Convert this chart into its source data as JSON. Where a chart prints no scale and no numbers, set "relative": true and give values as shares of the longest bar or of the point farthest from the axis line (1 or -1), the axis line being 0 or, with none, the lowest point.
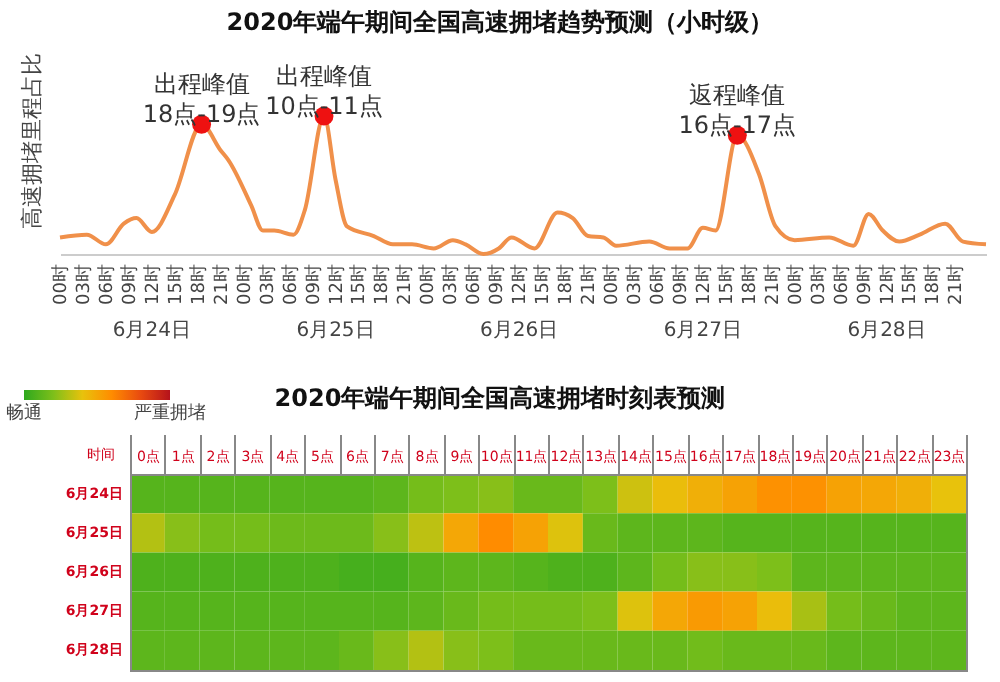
{
  "chart_data": [
    {
      "type": "line",
      "title": "2020年端午期间全国高速拥堵趋势预测（小时级）",
      "ylabel": "高速拥堵里程占比",
      "relative": true,
      "xlim": [
        "2020-06-24T00:00",
        "2020-06-29T01:00"
      ],
      "xticks": [
        {
          "value": "2020-06-24T00:00",
          "label": "00时"
        },
        {
          "value": "2020-06-24T03:00",
          "label": "03时"
        },
        {
          "value": "2020-06-24T06:00",
          "label": "06时"
        },
        {
          "value": "2020-06-24T09:00",
          "label": "09时"
        },
        {
          "value": "2020-06-24T12:00",
          "label": "12时"
        },
        {
          "value": "2020-06-24T15:00",
          "label": "15时"
        },
        {
          "value": "2020-06-24T18:00",
          "label": "18时"
        },
        {
          "value": "2020-06-24T21:00",
          "label": "21时"
        },
        {
          "value": "2020-06-25T00:00",
          "label": "00时"
        },
        {
          "value": "2020-06-25T03:00",
          "label": "03时"
        },
        {
          "value": "2020-06-25T06:00",
          "label": "06时"
        },
        {
          "value": "2020-06-25T09:00",
          "label": "09时"
        },
        {
          "value": "2020-06-25T12:00",
          "label": "12时"
        },
        {
          "value": "2020-06-25T15:00",
          "label": "15时"
        },
        {
          "value": "2020-06-25T18:00",
          "label": "18时"
        },
        {
          "value": "2020-06-25T21:00",
          "label": "21时"
        },
        {
          "value": "2020-06-26T00:00",
          "label": "00时"
        },
        {
          "value": "2020-06-26T03:00",
          "label": "03时"
        },
        {
          "value": "2020-06-26T06:00",
          "label": "06时"
        },
        {
          "value": "2020-06-26T09:00",
          "label": "09时"
        },
        {
          "value": "2020-06-26T12:00",
          "label": "12时"
        },
        {
          "value": "2020-06-26T15:00",
          "label": "15时"
        },
        {
          "value": "2020-06-26T18:00",
          "label": "18时"
        },
        {
          "value": "2020-06-26T21:00",
          "label": "21时"
        },
        {
          "value": "2020-06-27T00:00",
          "label": "00时"
        },
        {
          "value": "2020-06-27T03:00",
          "label": "03时"
        },
        {
          "value": "2020-06-27T06:00",
          "label": "06时"
        },
        {
          "value": "2020-06-27T09:00",
          "label": "09时"
        },
        {
          "value": "2020-06-27T12:00",
          "label": "12时"
        },
        {
          "value": "2020-06-27T15:00",
          "label": "15时"
        },
        {
          "value": "2020-06-27T18:00",
          "label": "18时"
        },
        {
          "value": "2020-06-27T21:00",
          "label": "21时"
        },
        {
          "value": "2020-06-28T00:00",
          "label": "00时"
        },
        {
          "value": "2020-06-28T03:00",
          "label": "03时"
        },
        {
          "value": "2020-06-28T06:00",
          "label": "06时"
        },
        {
          "value": "2020-06-28T09:00",
          "label": "09时"
        },
        {
          "value": "2020-06-28T12:00",
          "label": "12时"
        },
        {
          "value": "2020-06-28T15:00",
          "label": "15时"
        },
        {
          "value": "2020-06-28T18:00",
          "label": "18时"
        },
        {
          "value": "2020-06-28T21:00",
          "label": "21时"
        }
      ],
      "series": [
        {
          "type": "line",
          "color": "#f0904a",
          "x": [
            "2020-06-24T00:00",
            "2020-06-24T03:30",
            "2020-06-24T06:00",
            "2020-06-24T08:20",
            "2020-06-24T10:00",
            "2020-06-24T12:00",
            "2020-06-24T15:00",
            "2020-06-24T18:30",
            "2020-06-24T21:00",
            "2020-06-24T22:00",
            "2020-06-25T01:00",
            "2020-06-25T02:30",
            "2020-06-25T04:00",
            "2020-06-25T06:30",
            "2020-06-25T08:00",
            "2020-06-25T10:30",
            "2020-06-25T12:00",
            "2020-06-25T13:30",
            "2020-06-25T17:00",
            "2020-06-25T19:30",
            "2020-06-25T22:00",
            "2020-06-26T00:50",
            "2020-06-26T03:20",
            "2020-06-26T05:00",
            "2020-06-26T07:20",
            "2020-06-26T09:20",
            "2020-06-26T11:00",
            "2020-06-26T14:00",
            "2020-06-26T17:00",
            "2020-06-26T19:00",
            "2020-06-26T21:00",
            "2020-06-26T23:00",
            "2020-06-27T00:40",
            "2020-06-27T05:00",
            "2020-06-27T07:40",
            "2020-06-27T10:00",
            "2020-06-27T12:00",
            "2020-06-27T13:40",
            "2020-06-27T16:30",
            "2020-06-27T19:20",
            "2020-06-27T21:30",
            "2020-06-28T00:00",
            "2020-06-28T04:30",
            "2020-06-28T07:40",
            "2020-06-28T09:40",
            "2020-06-28T11:30",
            "2020-06-28T13:40",
            "2020-06-28T16:20",
            "2020-06-28T19:40",
            "2020-06-28T22:00",
            "2020-06-29T01:00"
          ],
          "values": [
            0.12,
            0.14,
            0.07,
            0.22,
            0.26,
            0.16,
            0.43,
            0.94,
            0.75,
            0.68,
            0.35,
            0.17,
            0.17,
            0.14,
            0.32,
            1,
            0.54,
            0.2,
            0.13,
            0.07,
            0.07,
            0.04,
            0.1,
            0.07,
            0,
            0.04,
            0.12,
            0.04,
            0.3,
            0.26,
            0.13,
            0.12,
            0.06,
            0.09,
            0.04,
            0.04,
            0.19,
            0.17,
            0.86,
            0.58,
            0.2,
            0.1,
            0.12,
            0.06,
            0.29,
            0.17,
            0.09,
            0.14,
            0.22,
            0.09,
            0.07
          ]
        },
        {
          "type": "scatter",
          "color": "#ee1111",
          "x": [
            "2020-06-24T18:30",
            "2020-06-25T10:30",
            "2020-06-27T16:30"
          ],
          "values": [
            0.94,
            1,
            0.86
          ]
        }
      ],
      "annotations": [
        {
          "text": "出程峰值\n18点-19点",
          "x": "2020-06-24T18:30",
          "y": 0.94
        },
        {
          "text": "出程峰值\n10点-11点",
          "x": "2020-06-25T10:30",
          "y": 1
        },
        {
          "text": "返程峰值\n16点-17点",
          "x": "2020-06-27T16:30",
          "y": 0.86
        },
        "6月24日",
        "6月25日",
        "6月26日",
        "6月27日",
        "6月28日"
      ]
    },
    {
      "type": "heatmap",
      "title": "2020年端午期间全国高速拥堵时刻表预测",
      "ylabel": "时间",
      "categories": [
        "0点",
        "1点",
        "2点",
        "3点",
        "4点",
        "5点",
        "6点",
        "7点",
        "8点",
        "9点",
        "10点",
        "11点",
        "12点",
        "13点",
        "14点",
        "15点",
        "16点",
        "17点",
        "18点",
        "19点",
        "20点",
        "21点",
        "22点",
        "23点"
      ],
      "y_categories": [
        "6月24日",
        "6月25日",
        "6月26日",
        "6月27日",
        "6月28日"
      ],
      "cells": [
        [
          0.1,
          0.1,
          0.1,
          0.1,
          0.1,
          0.1,
          0.1,
          0.12,
          0.18,
          0.2,
          0.22,
          0.15,
          0.15,
          0.2,
          0.35,
          0.42,
          0.47,
          0.52,
          0.58,
          0.58,
          0.52,
          0.5,
          0.47,
          0.4
        ],
        [
          0.3,
          0.22,
          0.18,
          0.18,
          0.16,
          0.16,
          0.16,
          0.22,
          0.32,
          0.5,
          0.6,
          0.52,
          0.38,
          0.15,
          0.12,
          0.12,
          0.12,
          0.1,
          0.1,
          0.1,
          0.1,
          0.1,
          0.1,
          0.1
        ],
        [
          0.08,
          0.08,
          0.08,
          0.08,
          0.08,
          0.08,
          0.06,
          0.06,
          0.1,
          0.12,
          0.12,
          0.1,
          0.08,
          0.08,
          0.12,
          0.18,
          0.22,
          0.22,
          0.2,
          0.12,
          0.12,
          0.12,
          0.12,
          0.12
        ],
        [
          0.1,
          0.1,
          0.1,
          0.1,
          0.1,
          0.1,
          0.1,
          0.1,
          0.12,
          0.15,
          0.18,
          0.18,
          0.18,
          0.2,
          0.38,
          0.5,
          0.55,
          0.52,
          0.42,
          0.28,
          0.18,
          0.15,
          0.12,
          0.12
        ],
        [
          0.12,
          0.12,
          0.12,
          0.12,
          0.12,
          0.12,
          0.15,
          0.22,
          0.3,
          0.22,
          0.2,
          0.15,
          0.15,
          0.15,
          0.15,
          0.15,
          0.17,
          0.15,
          0.15,
          0.15,
          0.12,
          0.12,
          0.12,
          0.12
        ]
      ],
      "clim": [
        0,
        1
      ],
      "cticks": [
        {
          "value": 0,
          "label": "畅通"
        },
        {
          "value": 1,
          "label": "严重拥堵"
        }
      ]
    }
  ]
}
